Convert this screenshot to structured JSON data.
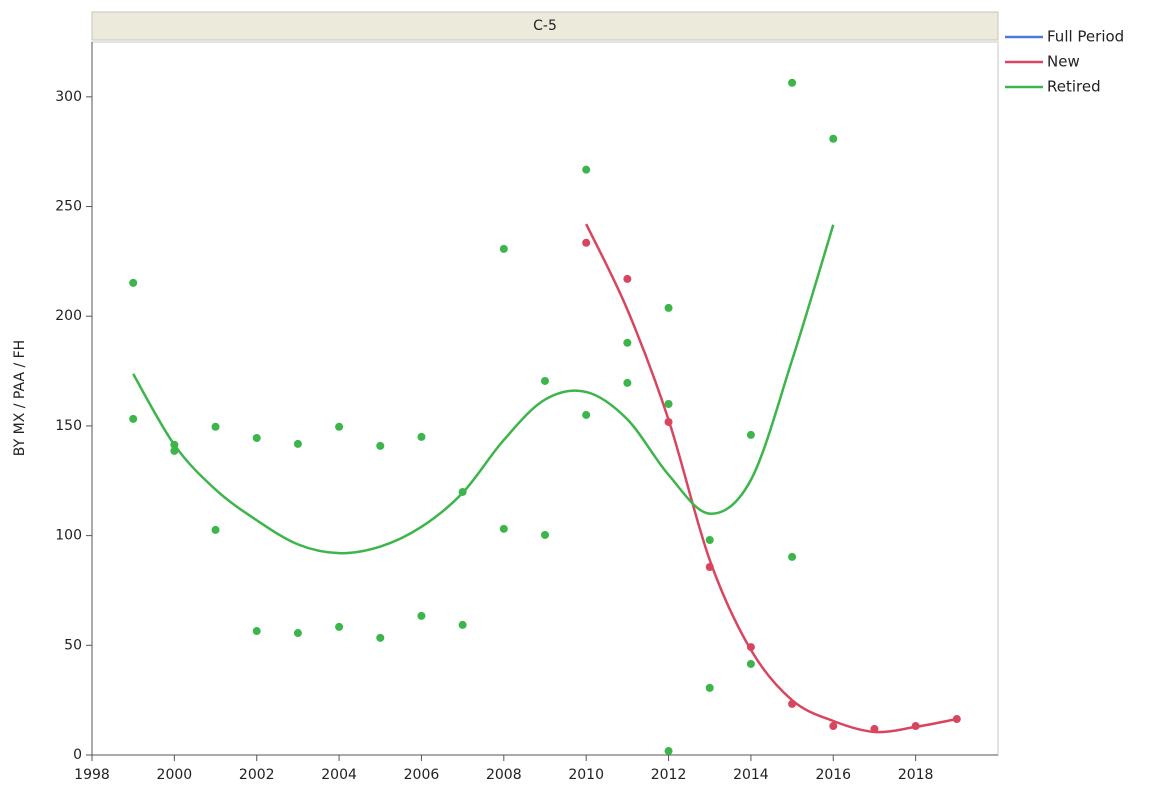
{
  "chart_data": {
    "type": "scatter",
    "title": "C-5",
    "y_label": "BY MX / PAA / FH",
    "xlim": [
      1998,
      2020
    ],
    "xticks": [
      1998,
      2000,
      2002,
      2004,
      2006,
      2008,
      2010,
      2012,
      2014,
      2016,
      2018
    ],
    "ylim": [
      0,
      325
    ],
    "yticks": [
      0,
      50,
      100,
      150,
      200,
      250,
      300
    ],
    "series": [
      {
        "name": "Full Period",
        "color": "#4a7bdc"
      },
      {
        "name": "New",
        "color": "#d9455f",
        "points": {
          "x": [
            2010,
            2011,
            2012,
            2013,
            2014,
            2015,
            2016,
            2017,
            2018,
            2019
          ],
          "values": [
            233.5,
            217,
            151.8,
            85.7,
            49.2,
            23.3,
            13.2,
            11.9,
            13.2,
            16.4
          ]
        },
        "fit": {
          "x": [
            2010,
            2011,
            2012,
            2013,
            2014,
            2015,
            2016,
            2017,
            2018,
            2019
          ],
          "values": [
            242,
            203,
            152.8,
            88.9,
            47.9,
            25,
            15.5,
            10.5,
            12.8,
            16.4
          ]
        }
      },
      {
        "name": "Retired",
        "color": "#3cb54a",
        "points": {
          "x": [
            1999,
            1999,
            2000,
            2000,
            2001,
            2001,
            2002,
            2002,
            2003,
            2003,
            2004,
            2004,
            2005,
            2005,
            2006,
            2006,
            2007,
            2007,
            2008,
            2008,
            2009,
            2009,
            2010,
            2010,
            2011,
            2011,
            2012,
            2012,
            2012,
            2013,
            2013,
            2014,
            2014,
            2015,
            2015,
            2016
          ],
          "values": [
            215.2,
            153.2,
            141.4,
            138.6,
            149.6,
            102.6,
            144.5,
            56.5,
            141.8,
            55.6,
            149.6,
            58.4,
            140.9,
            53.4,
            145,
            63.4,
            119.9,
            59.3,
            230.7,
            103.1,
            170.5,
            100.3,
            266.8,
            155,
            187.9,
            169.6,
            203.8,
            160,
            1.8,
            98,
            30.6,
            145.9,
            41.5,
            306.4,
            90.3,
            280.9
          ]
        },
        "fit": {
          "x": [
            1999,
            2000,
            2001,
            2002,
            2003,
            2004,
            2005,
            2006,
            2007,
            2008,
            2009,
            2010,
            2011,
            2012,
            2013,
            2014,
            2015,
            2016
          ],
          "values": [
            173.7,
            141.4,
            121,
            107,
            96,
            92,
            95,
            104,
            119.5,
            143.6,
            162,
            165.5,
            153,
            127.7,
            110,
            125.4,
            180,
            241.7
          ]
        }
      }
    ]
  }
}
